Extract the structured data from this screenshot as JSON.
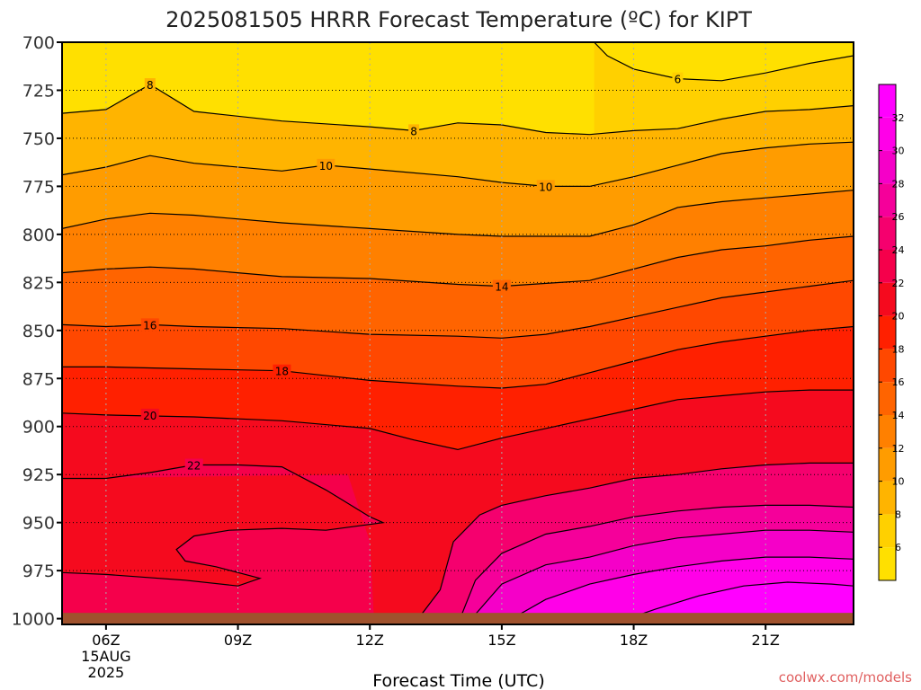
{
  "chart_data": {
    "type": "heatmap",
    "title": "2025081505 HRRR Forecast Temperature (ºC) for KIPT",
    "xlabel": "Forecast Time (UTC)",
    "ylabel": "",
    "credit": "coolwx.com/models",
    "x_ticks": [
      {
        "value": 6,
        "label": "06Z",
        "sub": [
          "15AUG",
          "2025"
        ]
      },
      {
        "value": 9,
        "label": "09Z"
      },
      {
        "value": 12,
        "label": "12Z"
      },
      {
        "value": 15,
        "label": "15Z"
      },
      {
        "value": 18,
        "label": "18Z"
      },
      {
        "value": 21,
        "label": "21Z"
      }
    ],
    "xlim": [
      5,
      23
    ],
    "y_ticks": [
      700,
      725,
      750,
      775,
      800,
      825,
      850,
      875,
      900,
      925,
      950,
      975,
      1000
    ],
    "ylim": [
      1003,
      700
    ],
    "grid": true,
    "colorbar_labels": [
      6,
      8,
      10,
      12,
      14,
      16,
      18,
      20,
      22,
      24,
      26,
      28,
      30,
      32
    ],
    "colorbar_stops": [
      {
        "t": 4,
        "color": "#ffe000"
      },
      {
        "t": 6,
        "color": "#ffd000"
      },
      {
        "t": 8,
        "color": "#ffb400"
      },
      {
        "t": 10,
        "color": "#ff9c00"
      },
      {
        "t": 12,
        "color": "#ff8000"
      },
      {
        "t": 14,
        "color": "#ff6400"
      },
      {
        "t": 16,
        "color": "#ff4800"
      },
      {
        "t": 18,
        "color": "#ff2000"
      },
      {
        "t": 20,
        "color": "#f50a1e"
      },
      {
        "t": 22,
        "color": "#f5004b"
      },
      {
        "t": 24,
        "color": "#f5006e"
      },
      {
        "t": 26,
        "color": "#f5009a"
      },
      {
        "t": 28,
        "color": "#f500c8"
      },
      {
        "t": 30,
        "color": "#ff00e8"
      },
      {
        "t": 32,
        "color": "#ff00ff"
      },
      {
        "t": 34,
        "color": "#ff00ff"
      }
    ],
    "contours": [
      {
        "level": 6,
        "label": "6",
        "label_at": [
          19,
          719
        ],
        "points": [
          [
            17.1,
            700
          ],
          [
            17.4,
            707
          ],
          [
            18,
            714
          ],
          [
            19,
            719
          ],
          [
            20,
            720
          ],
          [
            21,
            716
          ],
          [
            22,
            711
          ],
          [
            23,
            707
          ]
        ]
      },
      {
        "level": 8,
        "label": "8",
        "label_at": [
          7,
          722
        ],
        "points": [
          [
            5,
            737
          ],
          [
            6,
            735
          ],
          [
            7,
            722
          ],
          [
            8,
            736
          ],
          [
            10,
            741
          ],
          [
            12,
            744
          ],
          [
            13,
            746
          ],
          [
            14,
            742
          ],
          [
            15,
            743
          ],
          [
            16,
            747
          ],
          [
            17,
            748
          ],
          [
            18,
            746
          ],
          [
            19,
            745
          ],
          [
            20,
            740
          ],
          [
            21,
            736
          ],
          [
            22,
            735
          ],
          [
            23,
            733
          ]
        ]
      },
      {
        "level": 8,
        "label": "8",
        "label_at": [
          13,
          746
        ],
        "label_only": true,
        "points": []
      },
      {
        "level": 10,
        "label": "10",
        "label_at": [
          11,
          764
        ],
        "points": [
          [
            5,
            769
          ],
          [
            6,
            765
          ],
          [
            7,
            759
          ],
          [
            8,
            763
          ],
          [
            10,
            767
          ],
          [
            11,
            764
          ],
          [
            12,
            766
          ],
          [
            14,
            770
          ],
          [
            15,
            773
          ],
          [
            16,
            775
          ],
          [
            17,
            775
          ],
          [
            18,
            770
          ],
          [
            19,
            764
          ],
          [
            20,
            758
          ],
          [
            21,
            755
          ],
          [
            22,
            753
          ],
          [
            23,
            752
          ]
        ]
      },
      {
        "level": 10,
        "label": "10",
        "label_at": [
          16,
          775
        ],
        "label_only": true,
        "points": []
      },
      {
        "level": 12,
        "label": "",
        "label_at": null,
        "points": [
          [
            5,
            797
          ],
          [
            6,
            792
          ],
          [
            7,
            789
          ],
          [
            8,
            790
          ],
          [
            10,
            794
          ],
          [
            12,
            797
          ],
          [
            14,
            800
          ],
          [
            15,
            801
          ],
          [
            17,
            801
          ],
          [
            18,
            795
          ],
          [
            19,
            786
          ],
          [
            20,
            783
          ],
          [
            21,
            781
          ],
          [
            22,
            779
          ],
          [
            23,
            777
          ]
        ]
      },
      {
        "level": 14,
        "label": "14",
        "label_at": [
          15,
          827
        ],
        "points": [
          [
            5,
            820
          ],
          [
            6,
            818
          ],
          [
            7,
            817
          ],
          [
            8,
            818
          ],
          [
            10,
            822
          ],
          [
            12,
            823
          ],
          [
            14,
            826
          ],
          [
            15,
            827
          ],
          [
            17,
            824
          ],
          [
            18,
            818
          ],
          [
            19,
            812
          ],
          [
            20,
            808
          ],
          [
            21,
            806
          ],
          [
            22,
            803
          ],
          [
            23,
            801
          ]
        ]
      },
      {
        "level": 16,
        "label": "16",
        "label_at": [
          7,
          847
        ],
        "points": [
          [
            5,
            847
          ],
          [
            6,
            848
          ],
          [
            7,
            847
          ],
          [
            8,
            848
          ],
          [
            10,
            849
          ],
          [
            12,
            852
          ],
          [
            14,
            853
          ],
          [
            15,
            854
          ],
          [
            16,
            852
          ],
          [
            17,
            848
          ],
          [
            18,
            843
          ],
          [
            19,
            838
          ],
          [
            20,
            833
          ],
          [
            21,
            830
          ],
          [
            22,
            827
          ],
          [
            23,
            824
          ]
        ]
      },
      {
        "level": 18,
        "label": "18",
        "label_at": [
          10,
          871
        ],
        "points": [
          [
            5,
            869
          ],
          [
            6,
            869
          ],
          [
            8,
            870
          ],
          [
            10,
            871
          ],
          [
            12,
            876
          ],
          [
            14,
            879
          ],
          [
            15,
            880
          ],
          [
            16,
            878
          ],
          [
            17,
            872
          ],
          [
            18,
            866
          ],
          [
            19,
            860
          ],
          [
            20,
            856
          ],
          [
            21,
            853
          ],
          [
            22,
            850
          ],
          [
            23,
            848
          ]
        ]
      },
      {
        "level": 20,
        "label": "20",
        "label_at": [
          7,
          894
        ],
        "points": [
          [
            5,
            893
          ],
          [
            6,
            894
          ],
          [
            8,
            895
          ],
          [
            10,
            897
          ],
          [
            12,
            901
          ],
          [
            13,
            907
          ],
          [
            14,
            912
          ],
          [
            15,
            906
          ],
          [
            16,
            901
          ],
          [
            17,
            896
          ],
          [
            18,
            891
          ],
          [
            19,
            886
          ],
          [
            20,
            884
          ],
          [
            21,
            882
          ],
          [
            22,
            881
          ],
          [
            23,
            881
          ]
        ]
      },
      {
        "level": 22,
        "label": "22",
        "label_at": [
          8,
          920
        ],
        "points": [
          [
            5,
            927
          ],
          [
            6,
            927
          ],
          [
            7,
            924
          ],
          [
            8,
            920
          ],
          [
            9,
            920
          ],
          [
            10,
            921
          ],
          [
            11,
            933
          ],
          [
            12,
            947
          ],
          [
            12.3,
            950
          ],
          [
            11,
            954
          ],
          [
            10,
            953
          ],
          [
            8.8,
            954
          ],
          [
            8,
            957
          ],
          [
            7.6,
            964
          ],
          [
            7.8,
            970
          ],
          [
            8.5,
            973
          ],
          [
            9.5,
            979
          ],
          [
            9,
            983
          ],
          [
            7.8,
            980
          ],
          [
            6,
            977
          ],
          [
            5,
            976
          ]
        ]
      },
      {
        "level": 24,
        "label": "",
        "label_at": null,
        "points": [
          [
            13.1,
            1003
          ],
          [
            13.2,
            997
          ],
          [
            13.6,
            985
          ],
          [
            13.9,
            960
          ],
          [
            14.5,
            946
          ],
          [
            15,
            941
          ],
          [
            16,
            936
          ],
          [
            17,
            932
          ],
          [
            18,
            927
          ],
          [
            19,
            925
          ],
          [
            20,
            922
          ],
          [
            21,
            920
          ],
          [
            22,
            919
          ],
          [
            23,
            919
          ]
        ]
      },
      {
        "level": 26,
        "label": "",
        "label_at": null,
        "points": [
          [
            14,
            1003
          ],
          [
            14.4,
            980
          ],
          [
            15,
            966
          ],
          [
            16,
            956
          ],
          [
            17,
            952
          ],
          [
            18,
            947
          ],
          [
            19,
            944
          ],
          [
            20,
            942
          ],
          [
            21,
            941
          ],
          [
            22,
            941
          ],
          [
            23,
            942
          ]
        ]
      },
      {
        "level": 28,
        "label": "",
        "label_at": null,
        "points": [
          [
            14.2,
            1003
          ],
          [
            15,
            982
          ],
          [
            16,
            972
          ],
          [
            17,
            968
          ],
          [
            18,
            962
          ],
          [
            19,
            958
          ],
          [
            20,
            956
          ],
          [
            21,
            954
          ],
          [
            22,
            954
          ],
          [
            23,
            955
          ]
        ]
      },
      {
        "level": 30,
        "label": "",
        "label_at": null,
        "points": [
          [
            15,
            1003
          ],
          [
            16,
            990
          ],
          [
            17,
            982
          ],
          [
            18,
            977
          ],
          [
            19,
            973
          ],
          [
            20,
            970
          ],
          [
            21,
            968
          ],
          [
            22,
            968
          ],
          [
            23,
            969
          ]
        ]
      },
      {
        "level": 32,
        "label": "",
        "label_at": null,
        "points": [
          [
            17.5,
            1003
          ],
          [
            18.5,
            995
          ],
          [
            19.5,
            988
          ],
          [
            20.5,
            983
          ],
          [
            21.5,
            981
          ],
          [
            22.5,
            982
          ],
          [
            23,
            983
          ]
        ]
      }
    ],
    "ground": {
      "color": "#a0522d",
      "top_hpa": 997
    }
  }
}
